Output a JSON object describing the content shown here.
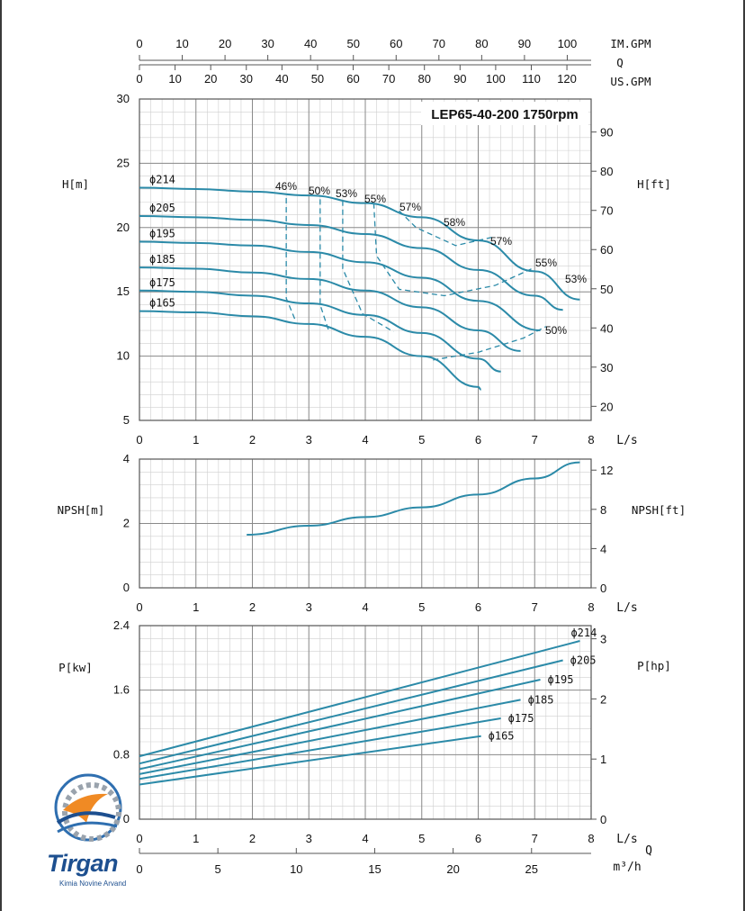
{
  "colors": {
    "curve": "#2b8aa8",
    "grid_major": "#8a8a8a",
    "grid_minor": "#cfcfcf",
    "logo_blue": "#1d4f8f",
    "logo_orange": "#f08a24"
  },
  "top_axes": {
    "imgpm": {
      "label": "IM.GPM",
      "ticks": [
        "0",
        "10",
        "20",
        "30",
        "40",
        "50",
        "60",
        "70",
        "80",
        "90",
        "100"
      ]
    },
    "q": {
      "label": "Q"
    },
    "usgpm": {
      "label": "US.GPM",
      "ticks": [
        "0",
        "10",
        "20",
        "30",
        "40",
        "50",
        "60",
        "70",
        "80",
        "90",
        "100",
        "110",
        "120"
      ]
    }
  },
  "logo": {
    "name": "Tirgan",
    "sub": "Kimia Novine Arvand"
  },
  "chart_data": [
    {
      "type": "line",
      "title": "LEP65-40-200 1750rpm",
      "xlabel": "L/s",
      "ylabel": "H[m]",
      "y2label": "H[ft]",
      "xlim": [
        0,
        8
      ],
      "ylim": [
        5,
        30
      ],
      "y2lim_ft": [
        16.4,
        98.4
      ],
      "x_ticks": [
        "0",
        "1",
        "2",
        "3",
        "4",
        "5",
        "6",
        "7",
        "8"
      ],
      "y_ticks": [
        "5",
        "10",
        "15",
        "20",
        "25",
        "30"
      ],
      "y2_ticks": [
        "20",
        "30",
        "40",
        "50",
        "60",
        "70",
        "80",
        "90"
      ],
      "grid": true,
      "series": [
        {
          "name": "ϕ214",
          "x": [
            0,
            1,
            2,
            3,
            4,
            5,
            6,
            7,
            7.8
          ],
          "y": [
            23.1,
            23.0,
            22.8,
            22.5,
            21.9,
            20.8,
            19.0,
            16.6,
            14.4
          ]
        },
        {
          "name": "ϕ205",
          "x": [
            0,
            1,
            2,
            3,
            4,
            5,
            6,
            7,
            7.5
          ],
          "y": [
            20.9,
            20.8,
            20.6,
            20.2,
            19.5,
            18.4,
            16.7,
            14.7,
            13.6
          ]
        },
        {
          "name": "ϕ195",
          "x": [
            0,
            1,
            2,
            3,
            4,
            5,
            6,
            7.1
          ],
          "y": [
            18.9,
            18.8,
            18.6,
            18.1,
            17.3,
            16.1,
            14.3,
            12.0
          ]
        },
        {
          "name": "ϕ185",
          "x": [
            0,
            1,
            2,
            3,
            4,
            5,
            6,
            6.75
          ],
          "y": [
            16.9,
            16.8,
            16.5,
            16.0,
            15.1,
            13.8,
            12.0,
            10.4
          ]
        },
        {
          "name": "ϕ175",
          "x": [
            0,
            1,
            2,
            3,
            4,
            5,
            6,
            6.4
          ],
          "y": [
            15.1,
            15.0,
            14.7,
            14.1,
            13.2,
            11.8,
            9.8,
            8.8
          ]
        },
        {
          "name": "ϕ165",
          "x": [
            0,
            1,
            2,
            3,
            4,
            5,
            6,
            6.05
          ],
          "y": [
            13.5,
            13.4,
            13.1,
            12.5,
            11.5,
            10.0,
            7.6,
            7.4
          ]
        }
      ],
      "efficiency": [
        {
          "name": "46%",
          "x": [
            2.6,
            2.6,
            2.75
          ],
          "y": [
            22.3,
            14.5,
            12.9
          ]
        },
        {
          "name": "50%",
          "x": [
            3.2,
            3.2,
            3.35
          ],
          "y": [
            22.2,
            14.0,
            12.0
          ]
        },
        {
          "name": "53%",
          "x": [
            3.6,
            3.6,
            3.95,
            4.5
          ],
          "y": [
            22.1,
            16.8,
            13.3,
            11.9
          ]
        },
        {
          "name": "55%",
          "x": [
            4.15,
            4.2,
            4.6,
            5.4,
            6.3,
            7.0
          ],
          "y": [
            21.9,
            17.8,
            15.2,
            14.7,
            15.5,
            16.9
          ]
        },
        {
          "name": "57%",
          "x": [
            4.6,
            4.9,
            5.6,
            6.3
          ],
          "y": [
            21.3,
            20.0,
            18.6,
            19.3
          ]
        },
        {
          "name": "58%",
          "x": []
        },
        {
          "name": "50%",
          "x": [
            5.2,
            6.0,
            6.8,
            7.2
          ],
          "y": [
            9.7,
            10.3,
            11.4,
            12.3
          ]
        }
      ],
      "efficiency_labels": [
        "46%",
        "50%",
        "53%",
        "55%",
        "57%",
        "58%",
        "57%",
        "55%",
        "53%",
        "50%"
      ]
    },
    {
      "type": "line",
      "xlabel": "L/s",
      "ylabel": "NPSH[m]",
      "y2label": "NPSH[ft]",
      "xlim": [
        0,
        8
      ],
      "ylim": [
        0,
        4
      ],
      "x_ticks": [
        "0",
        "1",
        "2",
        "3",
        "4",
        "5",
        "6",
        "7",
        "8"
      ],
      "y_ticks": [
        "0",
        "2",
        "4"
      ],
      "y2_ticks": [
        "0",
        "4",
        "8",
        "12"
      ],
      "grid": true,
      "series": [
        {
          "name": "NPSH",
          "x": [
            1.9,
            3,
            4,
            5,
            6,
            7,
            7.8
          ],
          "y": [
            1.65,
            1.93,
            2.2,
            2.5,
            2.9,
            3.4,
            3.9
          ]
        }
      ]
    },
    {
      "type": "line",
      "xlabel": "L/s",
      "x2label": "m³/h",
      "qlabel": "Q",
      "ylabel": "P[kw]",
      "y2label": "P[hp]",
      "xlim": [
        0,
        8
      ],
      "ylim": [
        0,
        2.4
      ],
      "x_ticks": [
        "0",
        "1",
        "2",
        "3",
        "4",
        "5",
        "6",
        "7",
        "8"
      ],
      "x2_ticks": [
        "0",
        "5",
        "10",
        "15",
        "20",
        "25"
      ],
      "y_ticks": [
        "0",
        "0.8",
        "1.6",
        "2.4"
      ],
      "y2_ticks": [
        "0",
        "1",
        "2",
        "3"
      ],
      "grid": true,
      "series": [
        {
          "name": "ϕ214",
          "x": [
            0,
            7.8
          ],
          "y": [
            0.78,
            2.21
          ]
        },
        {
          "name": "ϕ205",
          "x": [
            0,
            7.5
          ],
          "y": [
            0.69,
            1.97
          ]
        },
        {
          "name": "ϕ195",
          "x": [
            0,
            7.1
          ],
          "y": [
            0.62,
            1.73
          ]
        },
        {
          "name": "ϕ185",
          "x": [
            0,
            6.75
          ],
          "y": [
            0.56,
            1.48
          ]
        },
        {
          "name": "ϕ175",
          "x": [
            0,
            6.4
          ],
          "y": [
            0.5,
            1.25
          ]
        },
        {
          "name": "ϕ165",
          "x": [
            0,
            6.05
          ],
          "y": [
            0.43,
            1.03
          ]
        }
      ]
    }
  ]
}
